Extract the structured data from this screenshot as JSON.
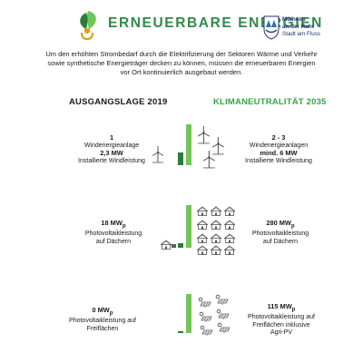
{
  "header": {
    "title": "ERNEUERBARE ENERGIEN",
    "logo_lines": [
      "Mülheim",
      "an der Ruhr",
      "Stadt am Fluss"
    ]
  },
  "intro": "Um den erhöhten Strombedarf durch die Elektrifizierung der Sektoren Wärme und Verkehr sowie synthetische Energieträger decken zu können, müssen die erneuerbaren Energien vor Ort kontinuierlich ausgebaut werden.",
  "columns": {
    "left": "AUSGANGSLAGE 2019",
    "right": "KLIMANEUTRALITÄT 2035"
  },
  "rows": [
    {
      "left": {
        "value": "1",
        "lines": [
          "Windenergieanlage",
          "2,3 MW",
          "Installierte Windleistung"
        ]
      },
      "right": {
        "value": "2 - 3",
        "lines": [
          "Windenergieanlagen",
          "mind. 6 MW",
          "Installierte Windleistung"
        ]
      },
      "bars": {
        "gray": 0,
        "dark_green": 0.3,
        "light_green": 1.0
      }
    },
    {
      "left": {
        "value": "18 MW",
        "sub": "p",
        "lines": [
          "Photovoltaikleistung",
          "auf Dächern"
        ]
      },
      "right": {
        "value": "280 MW",
        "sub": "p",
        "lines": [
          "Photovoltaikleistung",
          "auf Dächern"
        ]
      },
      "bars": {
        "gray": 0.06,
        "dark_green": 0.06,
        "light_green": 1.0
      }
    },
    {
      "left": {
        "value": "0 MW",
        "sub": "p",
        "lines": [
          "Photovoltaikleistung auf",
          "Freiflächen"
        ]
      },
      "right": {
        "value": "115 MW",
        "sub": "p",
        "lines": [
          "Photovoltaikleistung auf",
          "Freiflächen inklusive",
          "Agri-PV"
        ]
      },
      "bars": {
        "gray": 0,
        "dark_green": 0.03,
        "light_green": 1.0
      }
    }
  ],
  "icons": [
    "plug-leaf-logo",
    "city-crest-logo",
    "wind-turbine-icon",
    "house-solar-icon",
    "solar-panel-sun-icon"
  ],
  "colors": {
    "title_green": "#2f8a4a",
    "accent_green": "#35a447",
    "dark_green": "#2a7d3b",
    "light_green": "#73c55a"
  }
}
